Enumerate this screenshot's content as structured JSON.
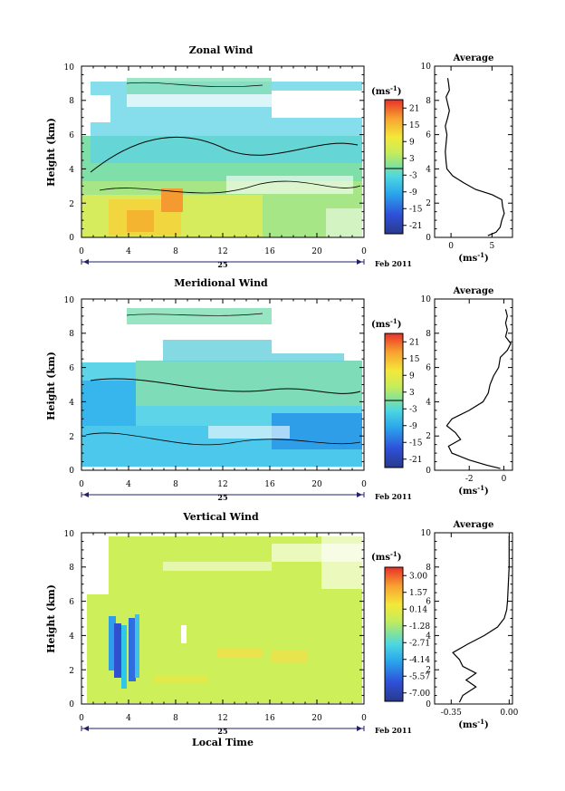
{
  "chart_data": [
    {
      "type": "heatmap",
      "title": "Zonal Wind",
      "ylabel": "Height (km)",
      "xlim": [
        0,
        24
      ],
      "ylim": [
        0,
        10
      ],
      "xticks": [
        "0",
        "4",
        "8",
        "12",
        "16",
        "20",
        "0"
      ],
      "yticks": [
        "0",
        "2",
        "4",
        "6",
        "8",
        "10"
      ],
      "date_day": "25",
      "date_label": "Feb 2011",
      "colorbar": {
        "unit": "(ms",
        "unit_sup": "-1",
        "unit_close": ")",
        "ticks": [
          "21",
          "15",
          "9",
          "3",
          "-3",
          "-9",
          "-15",
          "-21"
        ],
        "range": [
          -24,
          24
        ]
      },
      "profile": {
        "title": "Average",
        "xticks": [
          "0",
          "5"
        ],
        "xlim": [
          -2,
          7.5
        ],
        "xlabel": "(ms",
        "xlabel_sup": "-1",
        "xlabel_close": ")",
        "points": [
          [
            4.5,
            0.1
          ],
          [
            5.5,
            0.3
          ],
          [
            6,
            0.6
          ],
          [
            6.2,
            1
          ],
          [
            6.5,
            1.4
          ],
          [
            6.3,
            1.8
          ],
          [
            6.2,
            2.2
          ],
          [
            5,
            2.5
          ],
          [
            3,
            2.8
          ],
          [
            1.5,
            3.2
          ],
          [
            0.2,
            3.6
          ],
          [
            -0.5,
            4
          ],
          [
            -0.6,
            4.4
          ],
          [
            -0.7,
            5
          ],
          [
            -0.6,
            5.5
          ],
          [
            -0.5,
            6
          ],
          [
            -0.7,
            6.5
          ],
          [
            -0.4,
            7
          ],
          [
            -0.2,
            7.4
          ],
          [
            -0.4,
            7.8
          ],
          [
            -0.6,
            8.2
          ],
          [
            -0.2,
            8.6
          ],
          [
            -0.3,
            9
          ],
          [
            -0.4,
            9.3
          ]
        ]
      }
    },
    {
      "type": "heatmap",
      "title": "Meridional Wind",
      "ylabel": "Height (km)",
      "xlim": [
        0,
        24
      ],
      "ylim": [
        0,
        10
      ],
      "xticks": [
        "0",
        "4",
        "8",
        "12",
        "16",
        "20",
        "0"
      ],
      "yticks": [
        "0",
        "2",
        "4",
        "6",
        "8",
        "10"
      ],
      "date_day": "25",
      "date_label": "Feb 2011",
      "colorbar": {
        "unit": "(ms",
        "unit_sup": "-1",
        "unit_close": ")",
        "ticks": [
          "21",
          "15",
          "9",
          "3",
          "-3",
          "-9",
          "-15",
          "-21"
        ],
        "range": [
          -24,
          24
        ]
      },
      "profile": {
        "title": "Average",
        "xticks": [
          "-2",
          "0"
        ],
        "xlim": [
          -4,
          0.5
        ],
        "xlabel": "(ms",
        "xlabel_sup": "-1",
        "xlabel_close": ")",
        "points": [
          [
            -0.2,
            0.1
          ],
          [
            -1,
            0.3
          ],
          [
            -2,
            0.6
          ],
          [
            -3,
            1
          ],
          [
            -3.2,
            1.4
          ],
          [
            -2.5,
            1.8
          ],
          [
            -2.8,
            2.2
          ],
          [
            -3.3,
            2.6
          ],
          [
            -3,
            3
          ],
          [
            -2,
            3.5
          ],
          [
            -1.2,
            4
          ],
          [
            -0.9,
            4.5
          ],
          [
            -0.8,
            5
          ],
          [
            -0.6,
            5.5
          ],
          [
            -0.3,
            6
          ],
          [
            -0.2,
            6.6
          ],
          [
            0.2,
            7
          ],
          [
            0.4,
            7.4
          ],
          [
            0.1,
            7.8
          ],
          [
            0.2,
            8.2
          ],
          [
            0.1,
            8.6
          ],
          [
            0.2,
            9
          ],
          [
            0.1,
            9.4
          ]
        ]
      }
    },
    {
      "type": "heatmap",
      "title": "Vertical Wind",
      "ylabel": "Height (km)",
      "xlabel": "Local Time",
      "xlim": [
        0,
        24
      ],
      "ylim": [
        0,
        10
      ],
      "xticks": [
        "0",
        "4",
        "8",
        "12",
        "16",
        "20",
        "0"
      ],
      "yticks": [
        "0",
        "2",
        "4",
        "6",
        "8",
        "10"
      ],
      "date_day": "25",
      "date_label": "Feb 2011",
      "colorbar": {
        "unit": "(ms",
        "unit_sup": "-1",
        "unit_close": ")",
        "ticks": [
          "3.00",
          "1.57",
          "0.14",
          "-1.28",
          "-2.71",
          "-4.14",
          "-5.57",
          "-7.00"
        ],
        "range": [
          -7.7,
          3.7
        ]
      },
      "profile": {
        "title": "Average",
        "xticks": [
          "-0.35",
          "0.00"
        ],
        "xlim": [
          -0.45,
          0.02
        ],
        "xlabel": "(ms",
        "xlabel_sup": "-1",
        "xlabel_close": ")",
        "points": [
          [
            -0.3,
            0.1
          ],
          [
            -0.28,
            0.5
          ],
          [
            -0.2,
            1
          ],
          [
            -0.26,
            1.4
          ],
          [
            -0.2,
            1.8
          ],
          [
            -0.28,
            2.2
          ],
          [
            -0.3,
            2.6
          ],
          [
            -0.34,
            3
          ],
          [
            -0.25,
            3.5
          ],
          [
            -0.15,
            4
          ],
          [
            -0.07,
            4.5
          ],
          [
            -0.03,
            5
          ],
          [
            -0.015,
            5.5
          ],
          [
            -0.01,
            6
          ],
          [
            -0.005,
            7
          ],
          [
            0,
            8
          ],
          [
            0,
            9
          ],
          [
            0,
            9.8
          ]
        ]
      }
    }
  ]
}
